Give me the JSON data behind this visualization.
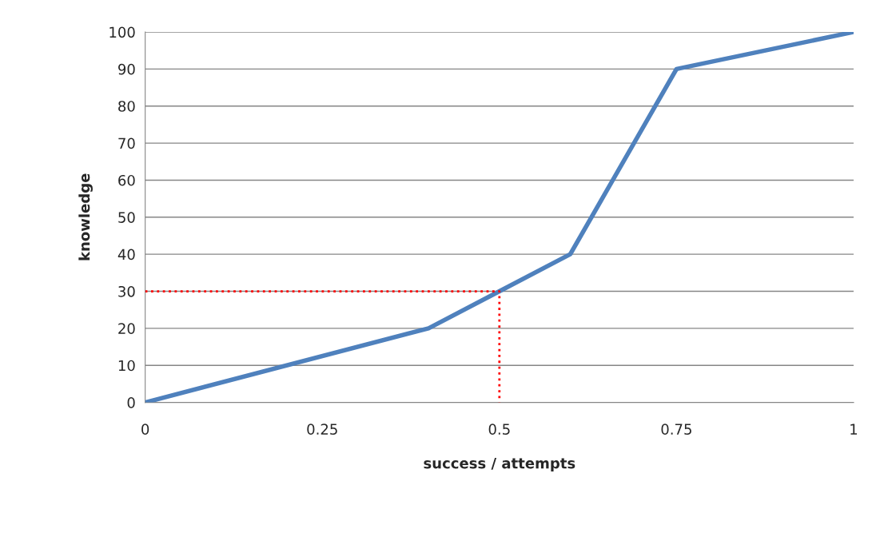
{
  "chart_data": {
    "type": "line",
    "xlabel": "success / attempts",
    "ylabel": "knowledge",
    "xlim": [
      0,
      1
    ],
    "xticks": [
      0,
      0.25,
      0.5,
      0.75,
      1
    ],
    "ylim": [
      0,
      100
    ],
    "yticks": [
      0,
      10,
      20,
      30,
      40,
      50,
      60,
      70,
      80,
      90,
      100
    ],
    "grid": "y",
    "legend": false,
    "series": [
      {
        "color": "#4f81bd",
        "line_style": "solid",
        "x": [
          0,
          0.4,
          0.5,
          0.6,
          0.75,
          1
        ],
        "values": [
          0,
          20,
          30,
          40,
          90,
          100
        ]
      },
      {
        "color": "#ff0000",
        "line_style": "dotted",
        "x": [
          0,
          0.5,
          0.5
        ],
        "values": [
          30,
          30,
          0
        ]
      }
    ]
  }
}
